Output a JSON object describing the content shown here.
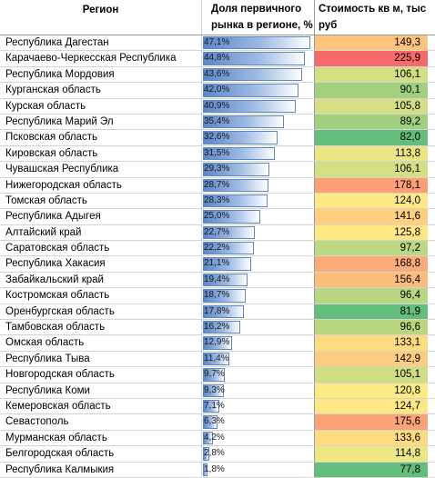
{
  "headers": {
    "region": "Регион",
    "share": "Доля первичного рынка в регионе, %",
    "price": "Стоимость кв м, тыс руб"
  },
  "rows": [
    {
      "region": "Республика Дагестан",
      "share": "47,1%",
      "share_value": 47.1,
      "price": "149,3",
      "color": "#fcc47c"
    },
    {
      "region": "Карачаево-Черкесская Республика",
      "share": "44,8%",
      "share_value": 44.8,
      "price": "225,9",
      "color": "#f8696b"
    },
    {
      "region": "Республика Мордовия",
      "share": "43,6%",
      "share_value": 43.6,
      "price": "106,1",
      "color": "#d3df82"
    },
    {
      "region": "Курганская область",
      "share": "42,0%",
      "share_value": 42.0,
      "price": "90,1",
      "color": "#a3d07f"
    },
    {
      "region": "Курская область",
      "share": "40,9%",
      "share_value": 40.9,
      "price": "105,8",
      "color": "#d3df82"
    },
    {
      "region": "Республика Марий Эл",
      "share": "35,4%",
      "share_value": 35.4,
      "price": "89,2",
      "color": "#a0cf7e"
    },
    {
      "region": "Псковская область",
      "share": "32,6%",
      "share_value": 32.6,
      "price": "82,0",
      "color": "#63be7b"
    },
    {
      "region": "Кировская область",
      "share": "31,5%",
      "share_value": 31.5,
      "price": "113,8",
      "color": "#ebe583"
    },
    {
      "region": "Чувашская Республика",
      "share": "29,3%",
      "share_value": 29.3,
      "price": "106,1",
      "color": "#d3df82"
    },
    {
      "region": "Нижегородская область",
      "share": "28,7%",
      "share_value": 28.7,
      "price": "178,1",
      "color": "#fba076"
    },
    {
      "region": "Томская область",
      "share": "28,3%",
      "share_value": 28.3,
      "price": "124,0",
      "color": "#ffe984"
    },
    {
      "region": "Республика Адыгея",
      "share": "25,0%",
      "share_value": 25.0,
      "price": "141,6",
      "color": "#fdcf7f"
    },
    {
      "region": "Алтайский край",
      "share": "22,7%",
      "share_value": 22.7,
      "price": "125,8",
      "color": "#ffe783"
    },
    {
      "region": "Саратовская область",
      "share": "22,2%",
      "share_value": 22.2,
      "price": "97,2",
      "color": "#bcd880"
    },
    {
      "region": "Республика Хакасия",
      "share": "21,1%",
      "share_value": 21.1,
      "price": "168,8",
      "color": "#fbab78"
    },
    {
      "region": "Забайкальский край",
      "share": "19,4%",
      "share_value": 19.4,
      "price": "156,4",
      "color": "#fcbc7b"
    },
    {
      "region": "Костромская область",
      "share": "18,7%",
      "share_value": 18.7,
      "price": "96,4",
      "color": "#b8d780"
    },
    {
      "region": "Оренбургская область",
      "share": "17,8%",
      "share_value": 17.8,
      "price": "81,9",
      "color": "#63be7b"
    },
    {
      "region": "Тамбовская область",
      "share": "16,2%",
      "share_value": 16.2,
      "price": "96,6",
      "color": "#b9d780"
    },
    {
      "region": "Омская область",
      "share": "12,9%",
      "share_value": 12.9,
      "price": "133,1",
      "color": "#fedb81"
    },
    {
      "region": "Республика Тыва",
      "share": "11,4%",
      "share_value": 11.4,
      "price": "142,9",
      "color": "#fdcd7f"
    },
    {
      "region": "Новгородская область",
      "share": "9,7%",
      "share_value": 9.7,
      "price": "105,1",
      "color": "#d0de82"
    },
    {
      "region": "Республика Коми",
      "share": "9,3%",
      "share_value": 9.3,
      "price": "120,8",
      "color": "#fcea84"
    },
    {
      "region": "Кемеровская область",
      "share": "7,1%",
      "share_value": 7.1,
      "price": "124,7",
      "color": "#ffe883"
    },
    {
      "region": "Севастополь",
      "share": "6,3%",
      "share_value": 6.3,
      "price": "175,6",
      "color": "#fba376"
    },
    {
      "region": "Мурманская область",
      "share": "4,2%",
      "share_value": 4.2,
      "price": "133,6",
      "color": "#fedb81"
    },
    {
      "region": "Белгородская область",
      "share": "2,8%",
      "share_value": 2.8,
      "price": "114,8",
      "color": "#eee683"
    },
    {
      "region": "Республика Калмыкия",
      "share": "1,8%",
      "share_value": 1.8,
      "price": "77,8",
      "color": "#63be7b"
    }
  ]
}
